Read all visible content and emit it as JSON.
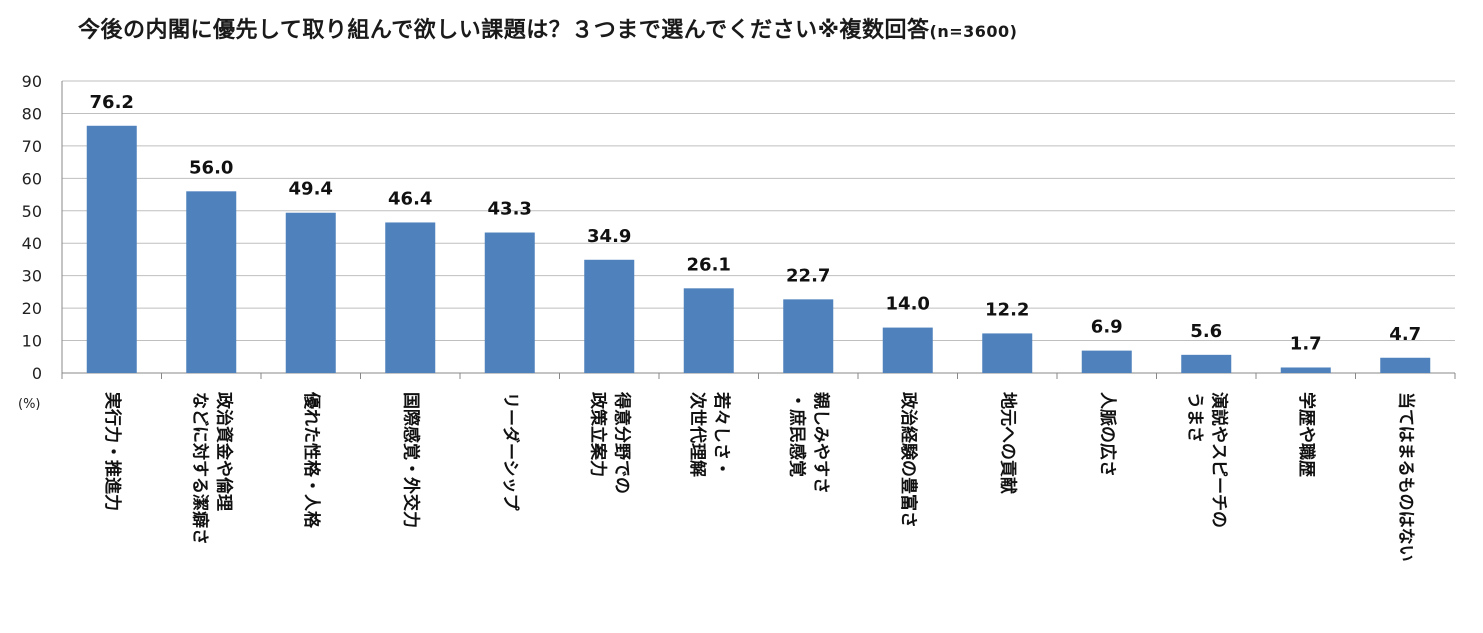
{
  "chart_data": {
    "type": "bar",
    "title": "今後の内閣に優先して取り組んで欲しい課題は？３つまで選んでください※複数回答",
    "title_note": "(n=3600)",
    "unit_label": "(%)",
    "ylim": [
      0,
      90
    ],
    "yticks": [
      0,
      10,
      20,
      30,
      40,
      50,
      60,
      70,
      80,
      90
    ],
    "grid": true,
    "bar_color": "#4F81BD",
    "categories": [
      "実行力・推進力",
      "政治資金や倫理などに対する潔癖さ",
      "優れた性格・人格",
      "国際感覚・外交力",
      "リーダーシップ",
      "得意分野での政策立案力",
      "若々しさ・次世代理解",
      "親しみやすさ・庶民感覚",
      "政治経験の豊富さ",
      "地元への貢献",
      "人脈の広さ",
      "演説やスピーチのうまさ",
      "学歴や職歴",
      "当てはまるものはない"
    ],
    "category_lines": [
      [
        "実行力・推進力"
      ],
      [
        "政治資金や倫理",
        "などに対する潔癖さ"
      ],
      [
        "優れた性格・人格"
      ],
      [
        "国際感覚・外交力"
      ],
      [
        "リーダーシップ"
      ],
      [
        "得意分野での",
        "政策立案力"
      ],
      [
        "若々しさ・",
        "次世代理解"
      ],
      [
        "親しみやすさ",
        "・庶民感覚"
      ],
      [
        "政治経験の豊富さ"
      ],
      [
        "地元への貢献"
      ],
      [
        "人脈の広さ"
      ],
      [
        "演説やスピーチの",
        "うまさ"
      ],
      [
        "学歴や職歴"
      ],
      [
        "当てはまるものはない"
      ]
    ],
    "values": [
      76.2,
      56.0,
      49.4,
      46.4,
      43.3,
      34.9,
      26.1,
      22.7,
      14.0,
      12.2,
      6.9,
      5.6,
      1.7,
      4.7
    ],
    "value_labels": [
      "76.2",
      "56.0",
      "49.4",
      "46.4",
      "43.3",
      "34.9",
      "26.1",
      "22.7",
      "14.0",
      "12.2",
      "6.9",
      "5.6",
      "1.7",
      "4.7"
    ]
  }
}
